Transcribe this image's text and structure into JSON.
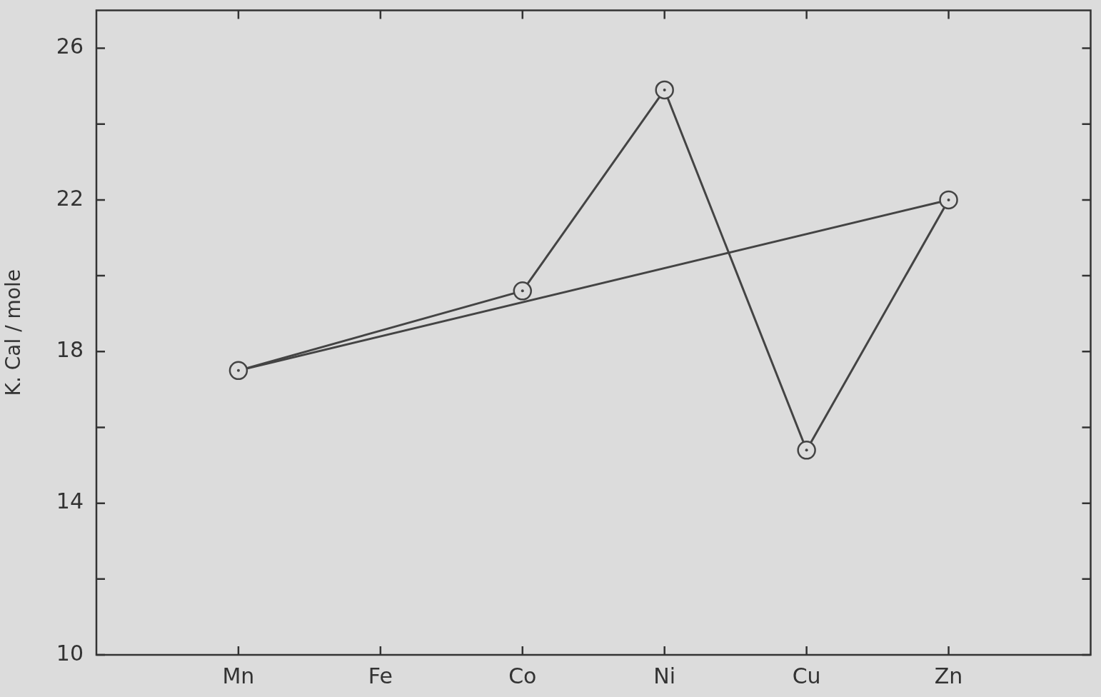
{
  "chart_data": {
    "type": "line",
    "ylabel": "K. Cal / mole",
    "categories": [
      null,
      "Mn",
      "Fe",
      "Co",
      "Ni",
      "Cu",
      "Zn",
      null
    ],
    "series": [
      {
        "color": "#444444",
        "marker": "circle",
        "values": [
          null,
          17.5,
          null,
          19.6,
          24.9,
          15.4,
          22.0,
          null
        ]
      },
      {
        "color": "#444444",
        "values": [
          null,
          17.5,
          null,
          null,
          null,
          null,
          22.0,
          null
        ]
      }
    ],
    "ylim": [
      10,
      27
    ],
    "yticks": [
      10,
      {
        "value": 12,
        "label": null
      },
      14,
      {
        "value": 16,
        "label": null
      },
      18,
      {
        "value": 20,
        "label": null
      },
      22,
      {
        "value": 24,
        "label": null
      },
      26
    ],
    "grid": false,
    "legend": false,
    "line_style": "solid"
  }
}
